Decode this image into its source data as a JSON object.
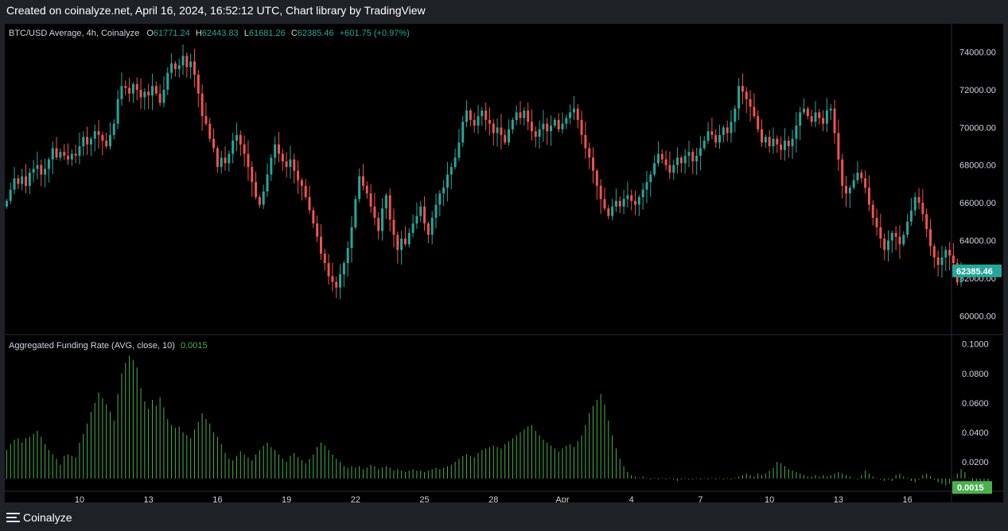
{
  "header": {
    "caption": "Created on coinalyze.net, April 16, 2024, 16:52:12 UTC, Chart library by TradingView"
  },
  "footer": {
    "brand": "Coinalyze"
  },
  "colors": {
    "up": "#26a69a",
    "down": "#ef5350",
    "histogram": "#4caf50",
    "background": "#000000",
    "frame": "#1e2126",
    "text": "#d1d4dc"
  },
  "price_legend": {
    "symbol": "BTC/USD Average, 4h, Coinalyze",
    "open_label": "O",
    "open": "61771.24",
    "high_label": "H",
    "high": "62443.83",
    "low_label": "L",
    "low": "61681.26",
    "close_label": "C",
    "close": "62385.46",
    "change": "+601.75 (+0.97%)"
  },
  "funding_legend": {
    "title": "Aggregated Funding Rate (AVG, close, 10)",
    "value": "0.0015"
  },
  "chart_data": [
    {
      "type": "candlestick",
      "title": "BTC/USD Average, 4h, Coinalyze",
      "interval": "4h",
      "x_tick_labels": [
        "10",
        "13",
        "16",
        "19",
        "22",
        "25",
        "28",
        "Apr",
        "4",
        "7",
        "10",
        "13",
        "16"
      ],
      "x_tick_slots": [
        19,
        37,
        55,
        73,
        91,
        109,
        127,
        145,
        163,
        181,
        199,
        217,
        235
      ],
      "y_ticks": [
        60000,
        62000,
        64000,
        66000,
        68000,
        70000,
        72000,
        74000
      ],
      "ylim": [
        59000,
        75500
      ],
      "last_price_label": "62385.46",
      "slot_count": 247,
      "closes": [
        66100,
        66700,
        67300,
        67000,
        67400,
        66900,
        67600,
        67800,
        68000,
        67500,
        67800,
        68300,
        68900,
        68400,
        68700,
        68500,
        68300,
        68600,
        68500,
        69000,
        69500,
        69100,
        69400,
        69800,
        69600,
        69300,
        69000,
        69600,
        70200,
        71500,
        72200,
        72100,
        71800,
        72300,
        72000,
        71600,
        71900,
        71700,
        72200,
        71800,
        71300,
        72000,
        72900,
        73400,
        73100,
        73300,
        73800,
        73200,
        73500,
        72800,
        71800,
        70600,
        70200,
        69400,
        68900,
        67900,
        68400,
        68100,
        68600,
        69300,
        69600,
        69100,
        68600,
        67900,
        67100,
        66300,
        65900,
        66600,
        67500,
        68400,
        69100,
        68600,
        68200,
        67900,
        68300,
        67700,
        67200,
        66900,
        66300,
        65600,
        64900,
        64200,
        63300,
        62800,
        62100,
        61800,
        61500,
        62200,
        62800,
        63600,
        64700,
        66200,
        67400,
        66900,
        66500,
        65800,
        65200,
        64500,
        65700,
        66400,
        65100,
        64300,
        63500,
        64100,
        63800,
        64400,
        64900,
        65300,
        65800,
        64900,
        64300,
        65200,
        65900,
        66500,
        66800,
        67500,
        67900,
        68400,
        69200,
        70300,
        70900,
        70400,
        70100,
        70600,
        70900,
        70400,
        70200,
        69700,
        70000,
        69600,
        69200,
        69900,
        70400,
        70800,
        70500,
        70900,
        70300,
        69800,
        69500,
        69900,
        70200,
        69800,
        70100,
        70400,
        69900,
        70200,
        70500,
        70800,
        71000,
        70400,
        69600,
        68900,
        68400,
        67700,
        66900,
        66200,
        65700,
        65300,
        65800,
        66100,
        65800,
        66200,
        66400,
        66100,
        65900,
        66300,
        66700,
        67100,
        67500,
        68100,
        68600,
        68300,
        68000,
        67600,
        68000,
        68400,
        68100,
        68500,
        68700,
        68200,
        68500,
        68900,
        69300,
        69800,
        69600,
        69200,
        69600,
        70000,
        69700,
        70300,
        71000,
        72200,
        71900,
        71500,
        71100,
        70600,
        69900,
        69200,
        69500,
        69000,
        69400,
        69100,
        68800,
        69300,
        69000,
        69400,
        70100,
        70800,
        71000,
        70600,
        70300,
        70800,
        70500,
        70200,
        70900,
        71000,
        69700,
        68300,
        66900,
        66500,
        66800,
        67200,
        67600,
        67300,
        66800,
        65900,
        65200,
        64700,
        64100,
        63500,
        64000,
        64400,
        64200,
        63800,
        64300,
        65000,
        65600,
        66300,
        66000,
        65400,
        64600,
        63700,
        63100,
        62700,
        63100,
        63500,
        63200,
        62800,
        61771,
        62385
      ]
    },
    {
      "type": "bar",
      "title": "Aggregated Funding Rate (AVG, close, 10)",
      "y_ticks": [
        0.02,
        0.04,
        0.06,
        0.08,
        0.1
      ],
      "y_tick_labels": [
        "0.0200",
        "0.0400",
        "0.0600",
        "0.0800",
        "0.1000"
      ],
      "ylim": [
        0.0,
        0.102
      ],
      "last_value_label": "0.0015",
      "values": [
        0.028,
        0.032,
        0.035,
        0.036,
        0.033,
        0.036,
        0.037,
        0.039,
        0.041,
        0.037,
        0.032,
        0.028,
        0.025,
        0.022,
        0.018,
        0.024,
        0.025,
        0.024,
        0.023,
        0.033,
        0.039,
        0.046,
        0.054,
        0.06,
        0.067,
        0.063,
        0.059,
        0.054,
        0.048,
        0.066,
        0.08,
        0.087,
        0.092,
        0.089,
        0.084,
        0.07,
        0.061,
        0.056,
        0.062,
        0.058,
        0.064,
        0.057,
        0.049,
        0.045,
        0.043,
        0.044,
        0.04,
        0.038,
        0.036,
        0.042,
        0.047,
        0.053,
        0.049,
        0.046,
        0.04,
        0.037,
        0.032,
        0.026,
        0.022,
        0.021,
        0.024,
        0.027,
        0.025,
        0.023,
        0.021,
        0.025,
        0.028,
        0.031,
        0.033,
        0.03,
        0.028,
        0.025,
        0.022,
        0.02,
        0.024,
        0.026,
        0.023,
        0.021,
        0.019,
        0.022,
        0.025,
        0.03,
        0.033,
        0.031,
        0.028,
        0.025,
        0.022,
        0.02,
        0.017,
        0.016,
        0.017,
        0.016,
        0.017,
        0.015,
        0.016,
        0.018,
        0.017,
        0.015,
        0.016,
        0.017,
        0.016,
        0.014,
        0.015,
        0.014,
        0.013,
        0.014,
        0.015,
        0.014,
        0.014,
        0.013,
        0.014,
        0.015,
        0.016,
        0.015,
        0.016,
        0.017,
        0.018,
        0.02,
        0.022,
        0.024,
        0.025,
        0.024,
        0.023,
        0.026,
        0.028,
        0.029,
        0.03,
        0.031,
        0.03,
        0.029,
        0.032,
        0.034,
        0.036,
        0.038,
        0.04,
        0.042,
        0.044,
        0.045,
        0.041,
        0.038,
        0.035,
        0.033,
        0.031,
        0.029,
        0.027,
        0.029,
        0.031,
        0.032,
        0.03,
        0.034,
        0.038,
        0.045,
        0.053,
        0.058,
        0.062,
        0.066,
        0.059,
        0.048,
        0.038,
        0.029,
        0.022,
        0.017,
        0.013,
        0.011,
        0.01,
        0.009,
        0.01,
        0.009,
        0.008,
        0.009,
        0.008,
        0.009,
        0.008,
        0.009,
        0.008,
        0.007,
        0.008,
        0.009,
        0.008,
        0.008,
        0.009,
        0.008,
        0.009,
        0.008,
        0.009,
        0.008,
        0.009,
        0.008,
        0.009,
        0.008,
        0.009,
        0.01,
        0.011,
        0.012,
        0.011,
        0.01,
        0.012,
        0.011,
        0.012,
        0.014,
        0.016,
        0.02,
        0.019,
        0.017,
        0.015,
        0.014,
        0.013,
        0.012,
        0.011,
        0.01,
        0.01,
        0.011,
        0.01,
        0.011,
        0.01,
        0.011,
        0.012,
        0.013,
        0.012,
        0.011,
        0.01,
        0.009,
        0.008,
        0.011,
        0.014,
        0.012,
        0.01,
        0.009,
        0.008,
        0.007,
        0.008,
        0.007,
        0.011,
        0.012,
        0.01,
        0.009,
        0.007,
        0.006,
        0.008,
        0.011,
        0.012,
        0.01,
        0.008,
        0.006,
        0.005,
        0.004,
        0.005,
        0.009,
        0.012,
        0.015,
        0.013,
        0.009,
        0.007,
        0.006,
        0.005,
        0.004,
        0.0015
      ]
    }
  ]
}
